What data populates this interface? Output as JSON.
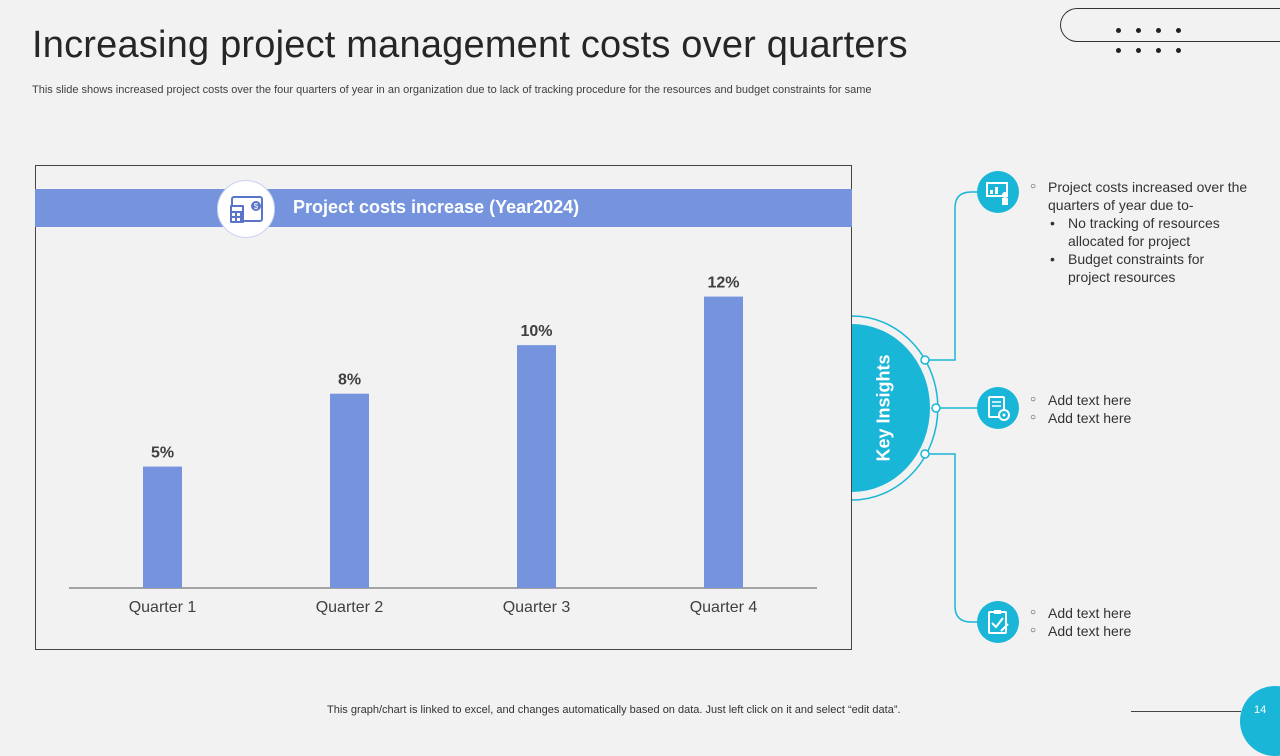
{
  "slide": {
    "title": "Increasing project management costs over quarters",
    "subtitle": "This slide shows increased project costs over the four quarters of year in an organization due to lack of tracking procedure for the resources and budget constraints for same",
    "footer_note": "This graph/chart is linked to excel, and changes automatically based on data. Just left click on it and select “edit data”.",
    "page_number": "14"
  },
  "colors": {
    "bar": "#7594dd",
    "accent": "#19b6d8",
    "background": "#f2f2f2"
  },
  "chart_data": {
    "type": "bar",
    "title": "Project costs increase (Year2024)",
    "categories": [
      "Quarter 1",
      "Quarter 2",
      "Quarter 3",
      "Quarter 4"
    ],
    "values": [
      5,
      8,
      10,
      12
    ],
    "data_labels": [
      "5%",
      "8%",
      "10%",
      "12%"
    ],
    "unit": "%",
    "xlabel": "",
    "ylabel": "",
    "ylim": [
      0,
      14
    ],
    "grid": false,
    "legend": "none"
  },
  "insights": {
    "heading": "Key Insights",
    "items": [
      {
        "icon": "presentation-icon",
        "lead": "Project costs increased over the quarters of year due to-",
        "bullets": [
          "No tracking of resources allocated for project",
          "Budget constraints for project resources"
        ]
      },
      {
        "icon": "settings-document-icon",
        "lines": [
          "Add text here",
          "Add text here"
        ]
      },
      {
        "icon": "clipboard-check-icon",
        "lines": [
          "Add text here",
          "Add text here"
        ]
      }
    ]
  }
}
